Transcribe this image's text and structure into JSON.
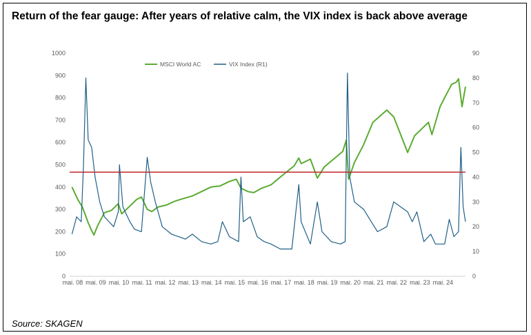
{
  "title": "Return of the fear gauge: After years of relative calm, the VIX index is back above average",
  "source": "Source: SKAGEN",
  "chart_data": {
    "type": "line",
    "legend_position": "top-left",
    "x_tick_labels": [
      "mai. 08",
      "mai. 09",
      "mai. 10",
      "mai. 11",
      "mai. 12",
      "mai. 13",
      "mai. 14",
      "mai. 15",
      "mai. 16",
      "mai. 17",
      "mai. 18",
      "mai. 19",
      "mai. 20",
      "mai. 21",
      "mai. 22",
      "mai. 23",
      "mai. 24"
    ],
    "xlim": [
      2008.2,
      2025.3
    ],
    "y_left": {
      "ylim": [
        0,
        1000
      ],
      "ticks": [
        "0",
        "100",
        "200",
        "300",
        "400",
        "500",
        "600",
        "700",
        "800",
        "900",
        "1000"
      ]
    },
    "y_right": {
      "ylim": [
        0,
        90
      ],
      "ticks": [
        "0",
        "10",
        "20",
        "30",
        "40",
        "50",
        "60",
        "70",
        "80",
        "90"
      ]
    },
    "average_line": {
      "axis": "right",
      "value": 42,
      "color": "#c0282c"
    },
    "series": [
      {
        "name": "MSCI World AC",
        "axis": "left",
        "color": "#5aab32",
        "points": [
          [
            2008.3,
            400
          ],
          [
            2008.55,
            345
          ],
          [
            2008.75,
            310
          ],
          [
            2009.0,
            240
          ],
          [
            2009.15,
            205
          ],
          [
            2009.25,
            185
          ],
          [
            2009.4,
            225
          ],
          [
            2009.7,
            285
          ],
          [
            2010.0,
            295
          ],
          [
            2010.3,
            325
          ],
          [
            2010.45,
            280
          ],
          [
            2010.8,
            315
          ],
          [
            2011.1,
            345
          ],
          [
            2011.3,
            355
          ],
          [
            2011.55,
            300
          ],
          [
            2011.75,
            290
          ],
          [
            2012.0,
            310
          ],
          [
            2012.4,
            320
          ],
          [
            2012.7,
            335
          ],
          [
            2013.0,
            345
          ],
          [
            2013.5,
            360
          ],
          [
            2013.9,
            380
          ],
          [
            2014.3,
            400
          ],
          [
            2014.7,
            405
          ],
          [
            2015.1,
            425
          ],
          [
            2015.4,
            435
          ],
          [
            2015.6,
            395
          ],
          [
            2015.9,
            380
          ],
          [
            2016.15,
            375
          ],
          [
            2016.5,
            395
          ],
          [
            2016.9,
            410
          ],
          [
            2017.3,
            445
          ],
          [
            2017.9,
            495
          ],
          [
            2018.1,
            530
          ],
          [
            2018.2,
            505
          ],
          [
            2018.6,
            525
          ],
          [
            2018.9,
            440
          ],
          [
            2019.2,
            490
          ],
          [
            2019.6,
            525
          ],
          [
            2020.0,
            560
          ],
          [
            2020.15,
            610
          ],
          [
            2020.25,
            435
          ],
          [
            2020.5,
            510
          ],
          [
            2020.9,
            590
          ],
          [
            2021.3,
            690
          ],
          [
            2021.9,
            745
          ],
          [
            2022.2,
            715
          ],
          [
            2022.5,
            635
          ],
          [
            2022.8,
            555
          ],
          [
            2023.1,
            630
          ],
          [
            2023.4,
            660
          ],
          [
            2023.7,
            690
          ],
          [
            2023.85,
            635
          ],
          [
            2024.2,
            760
          ],
          [
            2024.5,
            820
          ],
          [
            2024.7,
            860
          ],
          [
            2024.9,
            870
          ],
          [
            2025.0,
            885
          ],
          [
            2025.15,
            760
          ],
          [
            2025.3,
            850
          ]
        ]
      },
      {
        "name": "VIX Index (R1)",
        "axis": "right",
        "color": "#1f5f86",
        "points": [
          [
            2008.3,
            17
          ],
          [
            2008.5,
            24
          ],
          [
            2008.7,
            22
          ],
          [
            2008.8,
            45
          ],
          [
            2008.9,
            80
          ],
          [
            2009.0,
            55
          ],
          [
            2009.15,
            52
          ],
          [
            2009.3,
            40
          ],
          [
            2009.5,
            30
          ],
          [
            2009.7,
            24
          ],
          [
            2009.9,
            22
          ],
          [
            2010.1,
            20
          ],
          [
            2010.3,
            26
          ],
          [
            2010.35,
            45
          ],
          [
            2010.5,
            28
          ],
          [
            2010.8,
            22
          ],
          [
            2011.0,
            19
          ],
          [
            2011.3,
            18
          ],
          [
            2011.55,
            48
          ],
          [
            2011.7,
            38
          ],
          [
            2011.9,
            30
          ],
          [
            2012.2,
            20
          ],
          [
            2012.6,
            17
          ],
          [
            2012.9,
            16
          ],
          [
            2013.2,
            15
          ],
          [
            2013.5,
            17
          ],
          [
            2013.9,
            14
          ],
          [
            2014.3,
            13
          ],
          [
            2014.6,
            14
          ],
          [
            2014.8,
            22
          ],
          [
            2015.1,
            16
          ],
          [
            2015.5,
            14
          ],
          [
            2015.6,
            40
          ],
          [
            2015.7,
            22
          ],
          [
            2016.0,
            24
          ],
          [
            2016.3,
            16
          ],
          [
            2016.6,
            14
          ],
          [
            2016.9,
            13
          ],
          [
            2017.3,
            11
          ],
          [
            2017.8,
            11
          ],
          [
            2018.1,
            37
          ],
          [
            2018.2,
            22
          ],
          [
            2018.6,
            13
          ],
          [
            2018.9,
            30
          ],
          [
            2019.1,
            18
          ],
          [
            2019.5,
            14
          ],
          [
            2019.9,
            13
          ],
          [
            2020.1,
            14
          ],
          [
            2020.2,
            82
          ],
          [
            2020.3,
            40
          ],
          [
            2020.5,
            30
          ],
          [
            2020.9,
            27
          ],
          [
            2021.1,
            24
          ],
          [
            2021.5,
            18
          ],
          [
            2021.9,
            20
          ],
          [
            2022.2,
            30
          ],
          [
            2022.5,
            28
          ],
          [
            2022.8,
            26
          ],
          [
            2023.0,
            22
          ],
          [
            2023.2,
            26
          ],
          [
            2023.5,
            14
          ],
          [
            2023.8,
            17
          ],
          [
            2024.0,
            13
          ],
          [
            2024.4,
            13
          ],
          [
            2024.6,
            23
          ],
          [
            2024.8,
            16
          ],
          [
            2025.0,
            18
          ],
          [
            2025.1,
            52
          ],
          [
            2025.2,
            28
          ],
          [
            2025.3,
            22
          ]
        ]
      }
    ]
  }
}
